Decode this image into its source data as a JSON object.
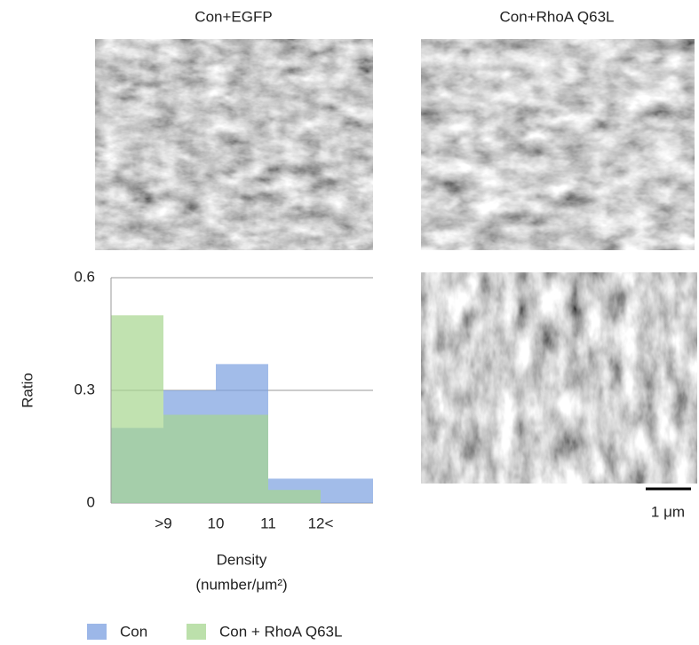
{
  "figure": {
    "panel_titles": [
      "Con+EGFP",
      "Con+RhoA Q63L"
    ],
    "scale_bar": "1 μm"
  },
  "chart_data": {
    "type": "histogram",
    "y_label": "Ratio",
    "x_label": "Density",
    "x_label_unit": "(number/μm²)",
    "bins": [
      8,
      9,
      10,
      11,
      12,
      13
    ],
    "series": [
      {
        "name": "Con",
        "color": "#7b9fe0",
        "values": [
          0.2,
          0.3,
          0.37,
          0.065,
          0.065
        ]
      },
      {
        "name": "Con + RhoA Q63L",
        "color": "#a6d68f",
        "values": [
          0.5,
          0.235,
          0.235,
          0.035,
          0
        ]
      }
    ],
    "xlim": [
      8,
      13
    ],
    "xticks": [
      {
        "value": 9,
        "label": ">9"
      },
      10,
      11,
      {
        "value": 12,
        "label": "12<"
      }
    ],
    "ylim": [
      0,
      0.6
    ],
    "yticks": [
      0,
      0.3,
      0.6
    ],
    "grid": true
  }
}
